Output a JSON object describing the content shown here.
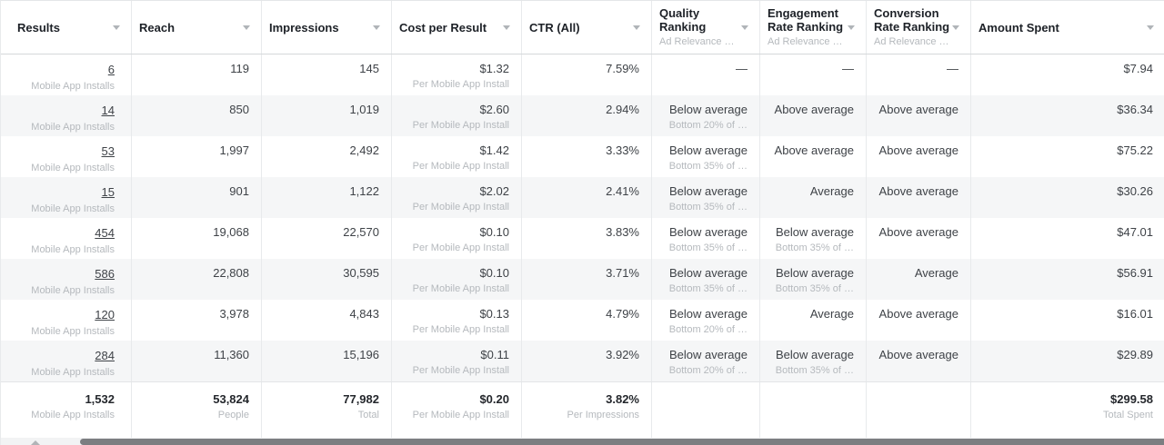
{
  "colors": {
    "row_alt_background": "#f5f6f7",
    "divider": "#e8eaec",
    "sub_label_text": "#b5b9bd",
    "scrollbar_thumb": "#7c7e81"
  },
  "table": {
    "columns": [
      {
        "label": "Results",
        "sub": ""
      },
      {
        "label": "Reach",
        "sub": ""
      },
      {
        "label": "Impressions",
        "sub": ""
      },
      {
        "label": "Cost per Result",
        "sub": ""
      },
      {
        "label": "CTR (All)",
        "sub": ""
      },
      {
        "label": "Quality Ranking",
        "sub": "Ad Relevance …"
      },
      {
        "label": "Engagement Rate Ranking",
        "sub": "Ad Relevance …"
      },
      {
        "label": "Conversion Rate Ranking",
        "sub": "Ad Relevance …"
      },
      {
        "label": "Amount Spent",
        "sub": ""
      }
    ],
    "rows": [
      {
        "results": "6",
        "results_sub": "Mobile App Installs",
        "reach": "119",
        "impressions": "145",
        "cost_per_result": "$1.32",
        "cost_per_result_sub": "Per Mobile App Install",
        "ctr": "7.59%",
        "quality_ranking": "—",
        "quality_ranking_sub": "",
        "engagement_ranking": "—",
        "engagement_ranking_sub": "",
        "conversion_ranking": "—",
        "conversion_ranking_sub": "",
        "amount_spent": "$7.94"
      },
      {
        "results": "14",
        "results_sub": "Mobile App Installs",
        "reach": "850",
        "impressions": "1,019",
        "cost_per_result": "$2.60",
        "cost_per_result_sub": "Per Mobile App Install",
        "ctr": "2.94%",
        "quality_ranking": "Below average",
        "quality_ranking_sub": "Bottom 20% of …",
        "engagement_ranking": "Above average",
        "engagement_ranking_sub": "",
        "conversion_ranking": "Above average",
        "conversion_ranking_sub": "",
        "amount_spent": "$36.34"
      },
      {
        "results": "53",
        "results_sub": "Mobile App Installs",
        "reach": "1,997",
        "impressions": "2,492",
        "cost_per_result": "$1.42",
        "cost_per_result_sub": "Per Mobile App Install",
        "ctr": "3.33%",
        "quality_ranking": "Below average",
        "quality_ranking_sub": "Bottom 35% of …",
        "engagement_ranking": "Above average",
        "engagement_ranking_sub": "",
        "conversion_ranking": "Above average",
        "conversion_ranking_sub": "",
        "amount_spent": "$75.22"
      },
      {
        "results": "15",
        "results_sub": "Mobile App Installs",
        "reach": "901",
        "impressions": "1,122",
        "cost_per_result": "$2.02",
        "cost_per_result_sub": "Per Mobile App Install",
        "ctr": "2.41%",
        "quality_ranking": "Below average",
        "quality_ranking_sub": "Bottom 35% of …",
        "engagement_ranking": "Average",
        "engagement_ranking_sub": "",
        "conversion_ranking": "Above average",
        "conversion_ranking_sub": "",
        "amount_spent": "$30.26"
      },
      {
        "results": "454",
        "results_sub": "Mobile App Installs",
        "reach": "19,068",
        "impressions": "22,570",
        "cost_per_result": "$0.10",
        "cost_per_result_sub": "Per Mobile App Install",
        "ctr": "3.83%",
        "quality_ranking": "Below average",
        "quality_ranking_sub": "Bottom 35% of …",
        "engagement_ranking": "Below average",
        "engagement_ranking_sub": "Bottom 35% of …",
        "conversion_ranking": "Above average",
        "conversion_ranking_sub": "",
        "amount_spent": "$47.01"
      },
      {
        "results": "586",
        "results_sub": "Mobile App Installs",
        "reach": "22,808",
        "impressions": "30,595",
        "cost_per_result": "$0.10",
        "cost_per_result_sub": "Per Mobile App Install",
        "ctr": "3.71%",
        "quality_ranking": "Below average",
        "quality_ranking_sub": "Bottom 35% of …",
        "engagement_ranking": "Below average",
        "engagement_ranking_sub": "Bottom 35% of …",
        "conversion_ranking": "Average",
        "conversion_ranking_sub": "",
        "amount_spent": "$56.91"
      },
      {
        "results": "120",
        "results_sub": "Mobile App Installs",
        "reach": "3,978",
        "impressions": "4,843",
        "cost_per_result": "$0.13",
        "cost_per_result_sub": "Per Mobile App Install",
        "ctr": "4.79%",
        "quality_ranking": "Below average",
        "quality_ranking_sub": "Bottom 20% of …",
        "engagement_ranking": "Average",
        "engagement_ranking_sub": "",
        "conversion_ranking": "Above average",
        "conversion_ranking_sub": "",
        "amount_spent": "$16.01"
      },
      {
        "results": "284",
        "results_sub": "Mobile App Installs",
        "reach": "11,360",
        "impressions": "15,196",
        "cost_per_result": "$0.11",
        "cost_per_result_sub": "Per Mobile App Install",
        "ctr": "3.92%",
        "quality_ranking": "Below average",
        "quality_ranking_sub": "Bottom 20% of …",
        "engagement_ranking": "Below average",
        "engagement_ranking_sub": "Bottom 35% of …",
        "conversion_ranking": "Above average",
        "conversion_ranking_sub": "",
        "amount_spent": "$29.89"
      }
    ],
    "totals": {
      "results": "1,532",
      "results_sub": "Mobile App Installs",
      "reach": "53,824",
      "reach_sub": "People",
      "impressions": "77,982",
      "impressions_sub": "Total",
      "cost_per_result": "$0.20",
      "cost_per_result_sub": "Per Mobile App Install",
      "ctr": "3.82%",
      "ctr_sub": "Per Impressions",
      "quality_ranking": "",
      "engagement_ranking": "",
      "conversion_ranking": "",
      "amount_spent": "$299.58",
      "amount_spent_sub": "Total Spent"
    }
  }
}
